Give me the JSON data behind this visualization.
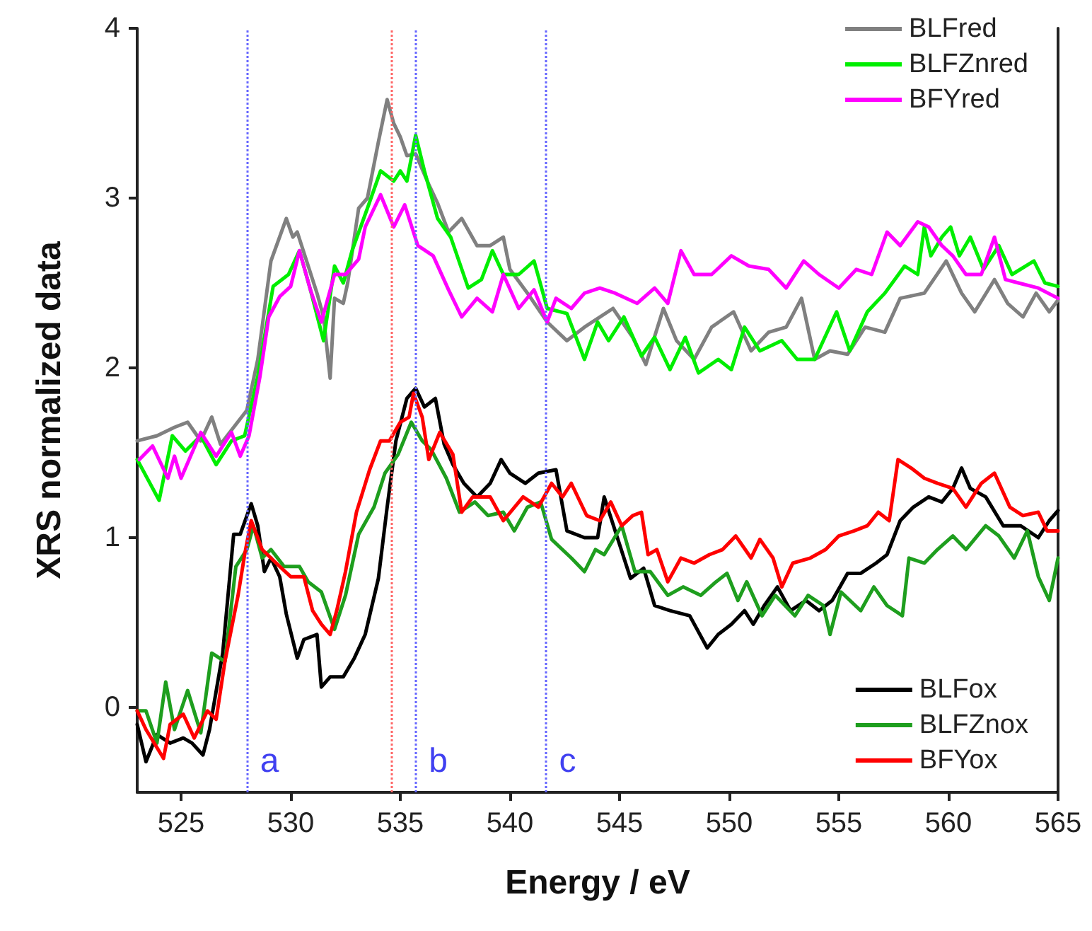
{
  "chart_data": {
    "type": "line",
    "xlabel": "Energy / eV",
    "ylabel": "XRS normalized data",
    "xlim": [
      523,
      565
    ],
    "xticks": [
      525,
      530,
      535,
      540,
      545,
      550,
      555,
      560,
      565
    ],
    "ylim": [
      -0.5,
      4
    ],
    "yticks": [
      0,
      1,
      2,
      3,
      4
    ],
    "grid": false,
    "legend": "right",
    "marker": "none",
    "line_style": "solid",
    "ref_lines": [
      {
        "axis": "x",
        "value": 528.0,
        "color": "#6666ff",
        "line_style": "dotted",
        "label": "a"
      },
      {
        "axis": "x",
        "value": 534.6,
        "color": "#ff6666",
        "line_style": "dotted"
      },
      {
        "axis": "x",
        "value": 535.7,
        "color": "#6666ff",
        "line_style": "dotted",
        "label": "b"
      },
      {
        "axis": "x",
        "value": 541.6,
        "color": "#6666ff",
        "line_style": "dotted",
        "label": "c"
      }
    ],
    "series": [
      {
        "name": "BLFred",
        "color": "#808080",
        "x": [
          523.0,
          523.9,
          524.7,
          525.3,
          525.9,
          526.4,
          526.8,
          527.4,
          528.0,
          528.5,
          529.1,
          529.8,
          530.1,
          530.3,
          530.8,
          531.2,
          531.5,
          531.8,
          532.0,
          532.4,
          532.6,
          533.1,
          533.5,
          534.0,
          534.4,
          534.7,
          535.0,
          535.3,
          535.7,
          536.3,
          536.7,
          537.2,
          537.8,
          538.5,
          539.1,
          539.7,
          540.0,
          540.8,
          541.7,
          542.6,
          543.4,
          544.7,
          545.6,
          546.2,
          547.0,
          547.6,
          548.4,
          549.2,
          550.2,
          551.0,
          551.8,
          552.6,
          553.3,
          553.9,
          554.6,
          555.4,
          556.2,
          557.1,
          557.8,
          558.9,
          559.9,
          560.6,
          561.2,
          562.1,
          562.7,
          563.4,
          564.0,
          564.6,
          565.0
        ],
        "values": [
          1.57,
          1.6,
          1.65,
          1.68,
          1.57,
          1.71,
          1.55,
          1.65,
          1.75,
          2.05,
          2.63,
          2.88,
          2.77,
          2.8,
          2.6,
          2.44,
          2.3,
          1.94,
          2.41,
          2.38,
          2.5,
          2.94,
          3.0,
          3.33,
          3.58,
          3.44,
          3.36,
          3.25,
          3.26,
          3.08,
          2.97,
          2.8,
          2.88,
          2.72,
          2.72,
          2.77,
          2.58,
          2.44,
          2.27,
          2.16,
          2.24,
          2.35,
          2.18,
          2.02,
          2.35,
          2.16,
          2.05,
          2.24,
          2.33,
          2.1,
          2.21,
          2.24,
          2.41,
          2.05,
          2.1,
          2.08,
          2.24,
          2.21,
          2.41,
          2.44,
          2.63,
          2.44,
          2.33,
          2.52,
          2.38,
          2.3,
          2.44,
          2.33,
          2.4
        ]
      },
      {
        "name": "BLFZnred",
        "color": "#00ee00",
        "x": [
          523.0,
          524.0,
          524.6,
          525.2,
          525.9,
          526.6,
          527.3,
          527.9,
          528.5,
          529.2,
          529.9,
          530.4,
          530.9,
          531.5,
          532.0,
          532.4,
          532.8,
          533.5,
          534.1,
          534.7,
          535.0,
          535.3,
          535.7,
          536.1,
          536.7,
          537.3,
          538.1,
          538.7,
          539.2,
          539.7,
          540.4,
          541.1,
          541.7,
          542.6,
          543.4,
          544.0,
          544.5,
          545.2,
          546.0,
          546.6,
          547.3,
          548.0,
          548.6,
          549.5,
          550.1,
          550.7,
          551.4,
          552.4,
          553.1,
          553.9,
          554.9,
          555.5,
          556.3,
          557.1,
          558.0,
          558.6,
          558.9,
          559.2,
          559.7,
          560.1,
          560.5,
          561.0,
          561.6,
          562.3,
          562.9,
          563.9,
          564.4,
          565.0
        ],
        "values": [
          1.46,
          1.22,
          1.6,
          1.51,
          1.6,
          1.43,
          1.57,
          1.6,
          1.95,
          2.48,
          2.55,
          2.69,
          2.46,
          2.16,
          2.6,
          2.5,
          2.69,
          2.94,
          3.16,
          3.1,
          3.16,
          3.1,
          3.37,
          3.16,
          2.88,
          2.77,
          2.47,
          2.52,
          2.69,
          2.55,
          2.55,
          2.63,
          2.35,
          2.32,
          2.05,
          2.27,
          2.16,
          2.3,
          2.07,
          2.18,
          1.99,
          2.18,
          1.97,
          2.05,
          1.99,
          2.24,
          2.1,
          2.16,
          2.05,
          2.05,
          2.33,
          2.1,
          2.33,
          2.44,
          2.6,
          2.55,
          2.83,
          2.66,
          2.77,
          2.83,
          2.66,
          2.77,
          2.58,
          2.72,
          2.55,
          2.63,
          2.5,
          2.48
        ]
      },
      {
        "name": "BFYred",
        "color": "#ff00ff",
        "x": [
          523.1,
          523.7,
          524.4,
          524.7,
          525.0,
          525.9,
          526.6,
          527.3,
          527.7,
          528.1,
          528.6,
          529.0,
          529.5,
          530.0,
          530.4,
          530.9,
          531.4,
          532.0,
          532.5,
          533.1,
          533.4,
          534.1,
          534.7,
          535.2,
          535.8,
          536.5,
          537.2,
          537.8,
          538.5,
          539.2,
          539.7,
          540.4,
          541.1,
          541.7,
          542.1,
          542.8,
          543.4,
          544.1,
          544.8,
          545.8,
          546.6,
          547.2,
          547.8,
          548.4,
          549.2,
          550.1,
          550.9,
          551.8,
          552.6,
          553.4,
          554.1,
          555.0,
          555.8,
          556.5,
          557.2,
          557.8,
          558.6,
          559.1,
          559.7,
          560.2,
          560.8,
          561.5,
          562.1,
          562.6,
          563.2,
          564.1,
          565.0
        ],
        "values": [
          1.46,
          1.54,
          1.35,
          1.48,
          1.35,
          1.62,
          1.48,
          1.62,
          1.48,
          1.6,
          1.95,
          2.3,
          2.42,
          2.48,
          2.69,
          2.46,
          2.27,
          2.55,
          2.55,
          2.64,
          2.83,
          3.02,
          2.83,
          2.96,
          2.72,
          2.66,
          2.46,
          2.3,
          2.41,
          2.33,
          2.55,
          2.35,
          2.46,
          2.27,
          2.41,
          2.35,
          2.44,
          2.47,
          2.44,
          2.38,
          2.47,
          2.38,
          2.69,
          2.55,
          2.55,
          2.66,
          2.6,
          2.58,
          2.47,
          2.63,
          2.55,
          2.47,
          2.58,
          2.55,
          2.8,
          2.72,
          2.86,
          2.83,
          2.72,
          2.66,
          2.55,
          2.55,
          2.77,
          2.52,
          2.5,
          2.47,
          2.41
        ]
      },
      {
        "name": "BLFox",
        "color": "#000000",
        "x": [
          523.0,
          523.4,
          523.9,
          524.5,
          525.1,
          525.5,
          526.0,
          526.3,
          526.9,
          527.4,
          527.7,
          528.2,
          528.5,
          528.8,
          529.1,
          529.5,
          529.8,
          530.3,
          530.6,
          531.2,
          531.4,
          531.8,
          532.4,
          532.9,
          533.4,
          534.0,
          534.4,
          534.8,
          535.3,
          535.7,
          536.1,
          536.6,
          537.0,
          537.4,
          537.9,
          538.5,
          539.1,
          539.6,
          540.0,
          540.7,
          541.3,
          542.1,
          542.6,
          543.4,
          544.0,
          544.3,
          545.0,
          545.5,
          546.1,
          546.6,
          547.3,
          548.2,
          549.0,
          549.5,
          550.1,
          550.7,
          551.1,
          551.6,
          552.2,
          552.8,
          553.5,
          554.1,
          554.7,
          555.4,
          556.0,
          556.7,
          557.2,
          557.8,
          558.4,
          559.1,
          559.7,
          560.2,
          560.6,
          561.0,
          561.7,
          562.5,
          563.3,
          564.1,
          564.6,
          565.0
        ],
        "values": [
          -0.1,
          -0.32,
          -0.16,
          -0.21,
          -0.18,
          -0.21,
          -0.28,
          -0.13,
          0.32,
          1.02,
          1.02,
          1.2,
          1.07,
          0.8,
          0.88,
          0.77,
          0.55,
          0.29,
          0.4,
          0.43,
          0.12,
          0.18,
          0.18,
          0.29,
          0.43,
          0.76,
          1.18,
          1.57,
          1.82,
          1.88,
          1.77,
          1.82,
          1.55,
          1.43,
          1.32,
          1.24,
          1.32,
          1.46,
          1.38,
          1.32,
          1.38,
          1.4,
          1.04,
          1.0,
          1.0,
          1.24,
          0.96,
          0.76,
          0.82,
          0.6,
          0.57,
          0.54,
          0.35,
          0.43,
          0.49,
          0.57,
          0.49,
          0.6,
          0.71,
          0.57,
          0.63,
          0.57,
          0.63,
          0.79,
          0.79,
          0.85,
          0.9,
          1.1,
          1.18,
          1.24,
          1.21,
          1.29,
          1.41,
          1.29,
          1.24,
          1.07,
          1.07,
          1.0,
          1.1,
          1.16
        ]
      },
      {
        "name": "BLFZnox",
        "color": "#1e9e1e",
        "x": [
          523.0,
          523.4,
          523.9,
          524.3,
          524.7,
          525.3,
          525.9,
          526.4,
          527.0,
          527.5,
          528.0,
          528.3,
          528.7,
          529.1,
          529.7,
          530.4,
          530.8,
          531.4,
          532.0,
          532.5,
          533.1,
          533.8,
          534.3,
          534.9,
          535.5,
          536.0,
          536.4,
          537.1,
          537.7,
          538.4,
          539.0,
          539.7,
          540.2,
          540.8,
          541.4,
          541.9,
          542.8,
          543.4,
          543.9,
          544.3,
          545.1,
          545.7,
          546.4,
          547.2,
          547.9,
          548.7,
          549.4,
          549.9,
          550.4,
          550.8,
          551.5,
          552.1,
          553.0,
          553.6,
          554.3,
          554.6,
          555.1,
          556.0,
          556.6,
          557.2,
          557.9,
          558.2,
          558.9,
          559.5,
          560.2,
          560.8,
          561.7,
          562.3,
          563.0,
          563.6,
          564.1,
          564.6,
          565.0
        ],
        "values": [
          -0.02,
          -0.02,
          -0.21,
          0.15,
          -0.13,
          0.1,
          -0.15,
          0.32,
          0.27,
          0.83,
          0.93,
          1.07,
          0.88,
          0.93,
          0.83,
          0.83,
          0.74,
          0.68,
          0.46,
          0.66,
          1.02,
          1.18,
          1.38,
          1.49,
          1.68,
          1.57,
          1.52,
          1.35,
          1.15,
          1.21,
          1.13,
          1.15,
          1.04,
          1.18,
          1.21,
          0.99,
          0.88,
          0.8,
          0.93,
          0.9,
          1.07,
          0.8,
          0.8,
          0.66,
          0.71,
          0.66,
          0.74,
          0.79,
          0.63,
          0.74,
          0.54,
          0.66,
          0.54,
          0.66,
          0.6,
          0.43,
          0.68,
          0.57,
          0.71,
          0.6,
          0.54,
          0.88,
          0.85,
          0.93,
          1.01,
          0.93,
          1.07,
          1.01,
          0.88,
          1.04,
          0.77,
          0.63,
          0.88
        ]
      },
      {
        "name": "BFYox",
        "color": "#ff0000",
        "x": [
          523.0,
          523.4,
          524.2,
          524.5,
          525.1,
          525.6,
          526.2,
          526.6,
          527.0,
          527.6,
          527.9,
          528.2,
          528.7,
          529.1,
          529.5,
          530.0,
          530.6,
          531.0,
          531.4,
          531.8,
          532.1,
          532.5,
          533.0,
          533.6,
          534.1,
          534.5,
          535.0,
          535.4,
          535.6,
          536.0,
          536.3,
          536.8,
          537.4,
          537.8,
          538.3,
          539.1,
          539.7,
          540.6,
          541.3,
          541.9,
          542.4,
          542.8,
          543.5,
          544.1,
          544.6,
          545.1,
          545.6,
          546.0,
          546.3,
          546.7,
          547.2,
          547.8,
          548.4,
          549.1,
          549.7,
          550.3,
          551.0,
          551.4,
          552.0,
          552.4,
          552.9,
          553.7,
          554.4,
          555.0,
          555.7,
          556.3,
          556.8,
          557.3,
          557.7,
          558.3,
          558.9,
          559.5,
          560.2,
          560.8,
          561.5,
          562.1,
          562.8,
          563.4,
          564.1,
          564.5,
          565.0
        ],
        "values": [
          -0.02,
          -0.13,
          -0.3,
          -0.1,
          -0.04,
          -0.18,
          -0.02,
          -0.07,
          0.27,
          0.66,
          0.9,
          1.1,
          0.93,
          0.88,
          0.83,
          0.77,
          0.77,
          0.57,
          0.49,
          0.43,
          0.57,
          0.8,
          1.15,
          1.4,
          1.57,
          1.57,
          1.68,
          1.71,
          1.85,
          1.71,
          1.46,
          1.62,
          1.49,
          1.15,
          1.24,
          1.24,
          1.1,
          1.24,
          1.18,
          1.32,
          1.24,
          1.32,
          1.13,
          1.1,
          1.21,
          1.07,
          1.13,
          1.15,
          0.9,
          0.93,
          0.74,
          0.88,
          0.85,
          0.9,
          0.93,
          1.01,
          0.88,
          0.99,
          0.88,
          0.71,
          0.85,
          0.88,
          0.93,
          1.01,
          1.04,
          1.07,
          1.15,
          1.1,
          1.46,
          1.41,
          1.35,
          1.32,
          1.29,
          1.18,
          1.32,
          1.38,
          1.18,
          1.13,
          1.15,
          1.04,
          1.04
        ]
      }
    ]
  }
}
